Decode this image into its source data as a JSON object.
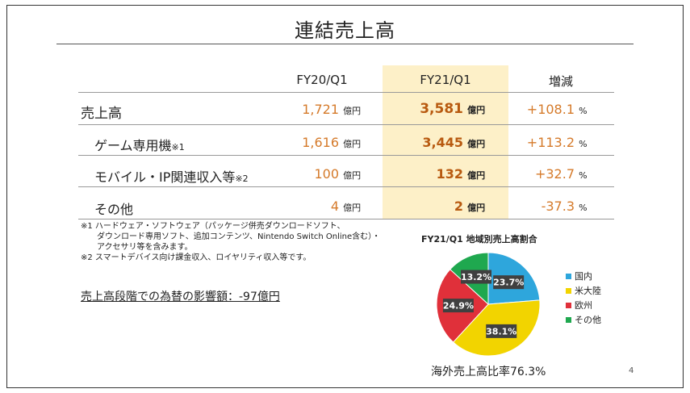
{
  "title": "連結売上高",
  "table": {
    "headers": [
      "FY20/Q1",
      "FY21/Q1",
      "増減"
    ],
    "rows": [
      {
        "label": "売上高",
        "sup": "",
        "fy20": "1,721",
        "fy20_unit": "億円",
        "fy21": "3,581",
        "fy21_unit": "億円",
        "change": "+108.1",
        "change_unit": "%"
      },
      {
        "label": "ゲーム専用機",
        "sup": "※1",
        "fy20": "1,616",
        "fy20_unit": "億円",
        "fy21": "3,445",
        "fy21_unit": "億円",
        "change": "+113.2",
        "change_unit": "%"
      },
      {
        "label": "モバイル・IP関連収入等",
        "sup": "※2",
        "fy20": "100",
        "fy20_unit": "億円",
        "fy21": "132",
        "fy21_unit": "億円",
        "change": "+32.7",
        "change_unit": "%"
      },
      {
        "label": "その他",
        "sup": "",
        "fy20": "4",
        "fy20_unit": "億円",
        "fy21": "2",
        "fy21_unit": "億円",
        "change": "-37.3",
        "change_unit": "%"
      }
    ]
  },
  "notes": {
    "note1_line1": "※1 ハードウェア・ソフトウェア（パッケージ併売ダウンロードソフト、",
    "note1_line2": "ダウンロード専用ソフト、追加コンテンツ、Nintendo Switch Online含む）・",
    "note1_line3": "アクセサリ等を含みます。",
    "note2": "※2 スマートデバイス向け課金収入、ロイヤリティ収入等です。"
  },
  "fx_impact": "売上高段階での為替の影響額：-97億円",
  "chart_data": {
    "type": "pie",
    "title": "FY21/Q1 地域別売上高割合",
    "categories": [
      "国内",
      "米大陸",
      "欧州",
      "その他"
    ],
    "values": [
      23.7,
      38.1,
      24.9,
      13.2
    ],
    "labels": [
      "23.7%",
      "38.1%",
      "24.9%",
      "13.2%"
    ],
    "colors": [
      "#2ea6dc",
      "#f2d400",
      "#e0303a",
      "#1fa84f"
    ],
    "legend": "right"
  },
  "overseas_ratio": "海外売上高比率76.3%",
  "page_number": "4"
}
